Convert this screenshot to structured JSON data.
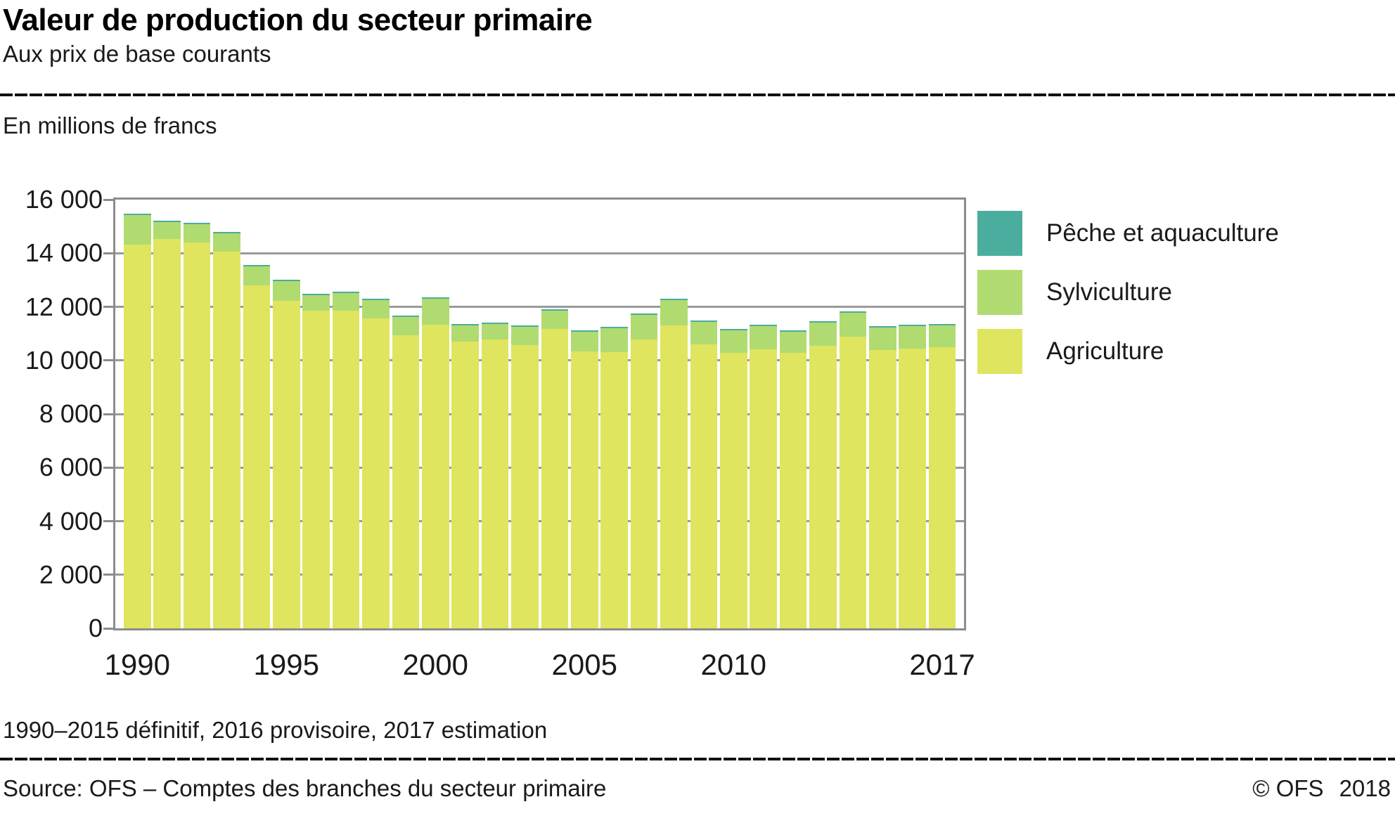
{
  "header": {
    "title": "Valeur de production du secteur primaire",
    "subtitle": "Aux prix de base courants"
  },
  "footer": {
    "source": "Source: OFS – Comptes des branches du secteur primaire",
    "copyright_left": "© OFS",
    "copyright_year": "2018"
  },
  "chart_data": {
    "type": "bar",
    "stacked": true,
    "title": "Valeur de production du secteur primaire",
    "subtitle": "Aux prix de base courants",
    "unit_label": "En millions de francs",
    "footnote": "1990–2015 définitif, 2016 provisoire, 2017 estimation",
    "xlabel": "",
    "ylabel": "En millions de francs",
    "ylim": [
      0,
      16000
    ],
    "y_step": 2000,
    "grid": "horizontal, behind bars",
    "legend_position": "right",
    "categories": [
      1990,
      1991,
      1992,
      1993,
      1994,
      1995,
      1996,
      1997,
      1998,
      1999,
      2000,
      2001,
      2002,
      2003,
      2004,
      2005,
      2006,
      2007,
      2008,
      2009,
      2010,
      2011,
      2012,
      2013,
      2014,
      2015,
      2016,
      2017
    ],
    "series": [
      {
        "name": "Pêche et aquaculture",
        "color": "#4bad9d",
        "values": [
          50,
          50,
          50,
          50,
          50,
          50,
          50,
          50,
          50,
          50,
          50,
          50,
          50,
          50,
          50,
          50,
          50,
          50,
          50,
          50,
          50,
          50,
          50,
          50,
          50,
          50,
          50,
          50
        ]
      },
      {
        "name": "Sylviculture",
        "color": "#b0db70",
        "values": [
          1100,
          630,
          680,
          690,
          700,
          720,
          570,
          650,
          690,
          690,
          980,
          620,
          590,
          690,
          700,
          750,
          880,
          930,
          940,
          860,
          850,
          880,
          800,
          880,
          890,
          840,
          840,
          810
        ]
      },
      {
        "name": "Agriculture",
        "color": "#dfe55e",
        "values": [
          14320,
          14530,
          14400,
          14050,
          12800,
          12230,
          11870,
          11870,
          11570,
          10940,
          11330,
          10700,
          10780,
          10570,
          11170,
          10330,
          10310,
          10780,
          11300,
          10590,
          10280,
          10410,
          10280,
          10540,
          10880,
          10390,
          10440,
          10500
        ]
      }
    ],
    "stack_order_bottom_to_top": [
      "Agriculture",
      "Sylviculture",
      "Pêche et aquaculture"
    ],
    "y_tick_labels": [
      "0",
      "2 000",
      "4 000",
      "6 000",
      "8 000",
      "10 000",
      "12 000",
      "14 000",
      "16 000"
    ],
    "x_tick_labels": [
      "1990",
      "1995",
      "2000",
      "2005",
      "2010",
      "2017"
    ],
    "x_tick_years": [
      1990,
      1995,
      2000,
      2005,
      2010,
      2017
    ],
    "axis_color": "#8c8c8c",
    "gridline_color": "#9a9a9a"
  }
}
